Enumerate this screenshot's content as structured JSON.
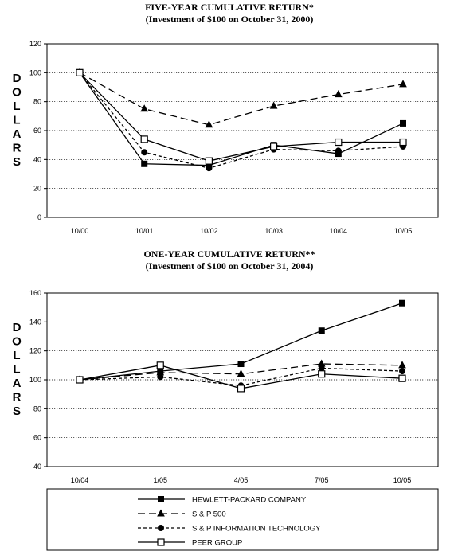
{
  "chart_data": [
    {
      "type": "line",
      "title": "FIVE-YEAR CUMULATIVE RETURN*",
      "subtitle": "(Investment of $100 on October 31, 2000)",
      "ylabel": "DOLLARS",
      "xlabel": "",
      "categories": [
        "10/00",
        "10/01",
        "10/02",
        "10/03",
        "10/04",
        "10/05"
      ],
      "ylim": [
        0,
        120
      ],
      "yticks": [
        0,
        20,
        40,
        60,
        80,
        100,
        120
      ],
      "grid": true,
      "series": [
        {
          "name": "HEWLETT-PACKARD COMPANY",
          "values": [
            100,
            37,
            36,
            50,
            44,
            65
          ]
        },
        {
          "name": "S & P 500",
          "values": [
            100,
            75,
            64,
            77,
            85,
            92
          ]
        },
        {
          "name": "S & P INFORMATION TECHNOLOGY",
          "values": [
            100,
            45,
            34,
            47,
            46,
            49
          ]
        },
        {
          "name": "PEER GROUP",
          "values": [
            100,
            54,
            39,
            49,
            52,
            52
          ]
        }
      ]
    },
    {
      "type": "line",
      "title": "ONE-YEAR CUMULATIVE RETURN**",
      "subtitle": "(Investment of $100 on October 31, 2004)",
      "ylabel": "DOLLARS",
      "xlabel": "",
      "categories": [
        "10/04",
        "1/05",
        "4/05",
        "7/05",
        "10/05"
      ],
      "ylim": [
        40,
        160
      ],
      "yticks": [
        40,
        60,
        80,
        100,
        120,
        140,
        160
      ],
      "grid": true,
      "series": [
        {
          "name": "HEWLETT-PACKARD COMPANY",
          "values": [
            100,
            106,
            111,
            134,
            153
          ]
        },
        {
          "name": "S & P 500",
          "values": [
            100,
            105,
            104,
            111,
            110
          ]
        },
        {
          "name": "S & P INFORMATION TECHNOLOGY",
          "values": [
            100,
            102,
            96,
            108,
            106
          ]
        },
        {
          "name": "PEER GROUP",
          "values": [
            100,
            110,
            94,
            104,
            101
          ]
        }
      ]
    }
  ],
  "legend": {
    "items": [
      {
        "label": "HEWLETT-PACKARD COMPANY",
        "marker": "filled-square",
        "dash": "solid"
      },
      {
        "label": "S & P 500",
        "marker": "triangle",
        "dash": "long-dash"
      },
      {
        "label": "S & P INFORMATION TECHNOLOGY",
        "marker": "circle",
        "dash": "short-dash"
      },
      {
        "label": "PEER GROUP",
        "marker": "open-square",
        "dash": "solid"
      }
    ]
  }
}
